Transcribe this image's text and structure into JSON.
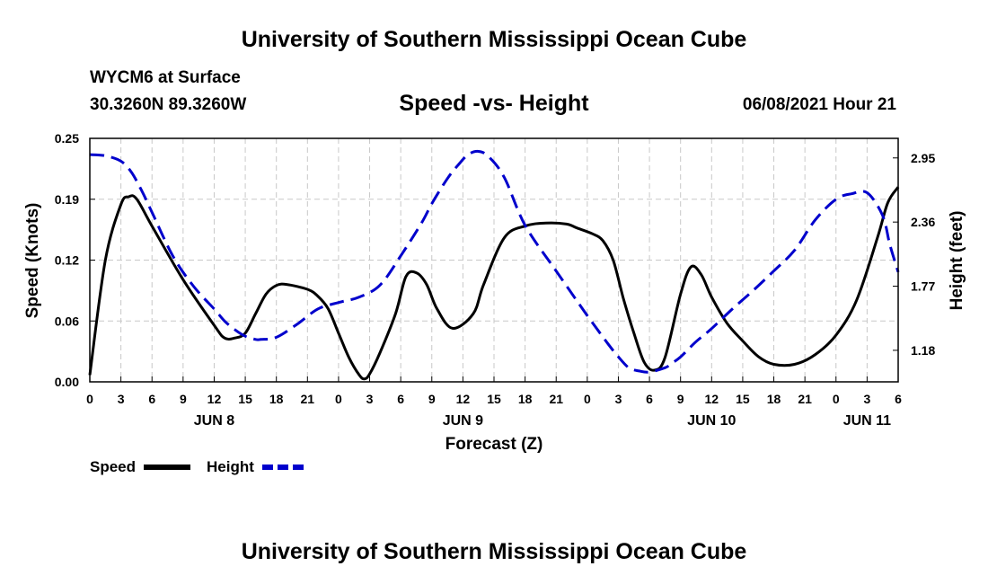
{
  "header": {
    "title": "University of Southern Mississippi Ocean Cube",
    "station": "WYCM6 at Surface",
    "coords": "30.3260N  89.3260W",
    "datetime": "06/08/2021 Hour 21"
  },
  "footer": {
    "title": "University of Southern Mississippi Ocean Cube"
  },
  "chart_data": {
    "type": "line",
    "title": "Speed -vs- Height",
    "xlabel": "Forecast (Z)",
    "ylabel": "Speed (Knots)",
    "y2label": "Height (feet)",
    "x_unit": "hours from Jun 8 00Z",
    "xlim": [
      0,
      78
    ],
    "ylim": [
      0,
      0.25
    ],
    "y2lim": [
      0.89,
      3.13
    ],
    "x_tick_values": [
      0,
      3,
      6,
      9,
      12,
      15,
      18,
      21,
      24,
      27,
      30,
      33,
      36,
      39,
      42,
      45,
      48,
      51,
      54,
      57,
      60,
      63,
      66,
      69,
      72,
      75,
      78
    ],
    "x_tick_labels": [
      "0",
      "3",
      "6",
      "9",
      "12",
      "15",
      "18",
      "21",
      "0",
      "3",
      "6",
      "9",
      "12",
      "15",
      "18",
      "21",
      "0",
      "3",
      "6",
      "9",
      "12",
      "15",
      "18",
      "21",
      "0",
      "3",
      "6"
    ],
    "date_labels": [
      {
        "x": 12,
        "label": "JUN 8"
      },
      {
        "x": 36,
        "label": "JUN 9"
      },
      {
        "x": 60,
        "label": "JUN 10"
      },
      {
        "x": 75,
        "label": "JUN 11"
      }
    ],
    "y_ticks": [
      "0.00",
      "0.06",
      "0.12",
      "0.19",
      "0.25"
    ],
    "y_tick_values": [
      0,
      0.0625,
      0.125,
      0.1875,
      0.25
    ],
    "y2_ticks": [
      "1.18",
      "1.77",
      "2.36",
      "2.95"
    ],
    "y2_tick_values": [
      1.18,
      1.77,
      2.36,
      2.95
    ],
    "grid": true,
    "legend_position": "bottom-left",
    "series": [
      {
        "name": "Speed",
        "axis": "left",
        "color": "#000000",
        "dash": "solid",
        "x": [
          0,
          1.5,
          3,
          3.75,
          4.5,
          6,
          9,
          12,
          13,
          14,
          15,
          16,
          17,
          18,
          19,
          21,
          22,
          23,
          24,
          25,
          26,
          26.5,
          27,
          28,
          29.5,
          30.5,
          31.5,
          32.5,
          33.5,
          35,
          37,
          38,
          40,
          42,
          44,
          46,
          47,
          48.5,
          49.5,
          50.5,
          51.5,
          52.5,
          53.5,
          54.5,
          55.5,
          57,
          58,
          59,
          60,
          61.5,
          63,
          64.5,
          66,
          68,
          70,
          72,
          74,
          76,
          77,
          78
        ],
        "values": [
          0.007,
          0.125,
          0.182,
          0.19,
          0.188,
          0.16,
          0.105,
          0.058,
          0.045,
          0.045,
          0.05,
          0.07,
          0.09,
          0.099,
          0.1,
          0.095,
          0.088,
          0.075,
          0.05,
          0.025,
          0.007,
          0.003,
          0.008,
          0.03,
          0.07,
          0.108,
          0.112,
          0.1,
          0.075,
          0.055,
          0.07,
          0.1,
          0.148,
          0.16,
          0.163,
          0.162,
          0.158,
          0.152,
          0.145,
          0.125,
          0.085,
          0.05,
          0.02,
          0.012,
          0.025,
          0.09,
          0.118,
          0.11,
          0.087,
          0.06,
          0.042,
          0.026,
          0.018,
          0.018,
          0.028,
          0.048,
          0.084,
          0.148,
          0.184,
          0.2
        ]
      },
      {
        "name": "Height",
        "axis": "right",
        "color": "#0000cc",
        "dash": "dashed",
        "x": [
          0,
          1.5,
          3,
          4,
          5,
          6,
          8,
          10,
          12,
          13,
          14,
          15,
          16,
          16.5,
          18,
          20,
          22,
          24,
          26,
          28,
          30,
          32,
          33,
          34.5,
          35.5,
          36.5,
          37.5,
          38.5,
          40,
          42,
          45,
          48,
          50,
          51,
          52,
          53,
          54,
          55.5,
          56,
          57,
          58.5,
          60,
          62,
          64,
          66,
          68,
          70,
          72,
          73.5,
          75,
          76.5,
          77.2,
          78
        ],
        "values": [
          2.98,
          2.97,
          2.92,
          2.82,
          2.65,
          2.45,
          2.05,
          1.77,
          1.56,
          1.45,
          1.37,
          1.31,
          1.28,
          1.28,
          1.3,
          1.42,
          1.56,
          1.62,
          1.67,
          1.78,
          2.05,
          2.35,
          2.53,
          2.76,
          2.88,
          2.98,
          3.01,
          2.96,
          2.77,
          2.33,
          1.91,
          1.5,
          1.24,
          1.12,
          1.02,
          0.99,
          0.98,
          1.02,
          1.05,
          1.12,
          1.26,
          1.38,
          1.56,
          1.73,
          1.91,
          2.1,
          2.38,
          2.57,
          2.62,
          2.63,
          2.42,
          2.15,
          1.9
        ]
      }
    ]
  }
}
